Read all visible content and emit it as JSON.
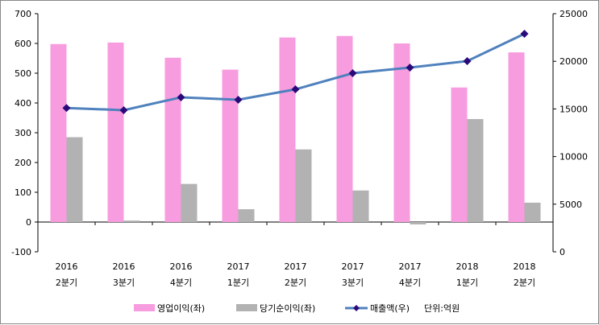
{
  "chart_data": {
    "type": "bar",
    "categories": [
      [
        "2016",
        "2분기"
      ],
      [
        "2016",
        "3분기"
      ],
      [
        "2016",
        "4분기"
      ],
      [
        "2017",
        "1분기"
      ],
      [
        "2017",
        "2분기"
      ],
      [
        "2017",
        "3분기"
      ],
      [
        "2017",
        "4분기"
      ],
      [
        "2018",
        "1분기"
      ],
      [
        "2018",
        "2분기"
      ]
    ],
    "series": [
      {
        "name": "영업이익(좌)",
        "type": "bar",
        "axis": "left",
        "color": "#F79CDF",
        "values": [
          598,
          603,
          552,
          512,
          620,
          625,
          600,
          452,
          570
        ]
      },
      {
        "name": "당기순이익(좌)",
        "type": "bar",
        "axis": "left",
        "color": "#B2B2B2",
        "values": [
          285,
          5,
          128,
          43,
          244,
          106,
          -8,
          346,
          65
        ]
      },
      {
        "name": "매출액(우)",
        "type": "line",
        "axis": "right",
        "color": "#4F81BD",
        "marker_color": "#2A0A7A",
        "values": [
          15100,
          14870,
          16220,
          15960,
          17060,
          18750,
          19340,
          20020,
          22890
        ]
      }
    ],
    "left_axis": {
      "range": [
        -100,
        700
      ],
      "ticks": [
        -100,
        0,
        100,
        200,
        300,
        400,
        500,
        600,
        700
      ]
    },
    "right_axis": {
      "range": [
        0,
        25000
      ],
      "ticks": [
        0,
        5000,
        10000,
        15000,
        20000,
        25000
      ]
    },
    "unit_note": "단위:억원",
    "legend_placement": "bottom",
    "grid": false
  }
}
